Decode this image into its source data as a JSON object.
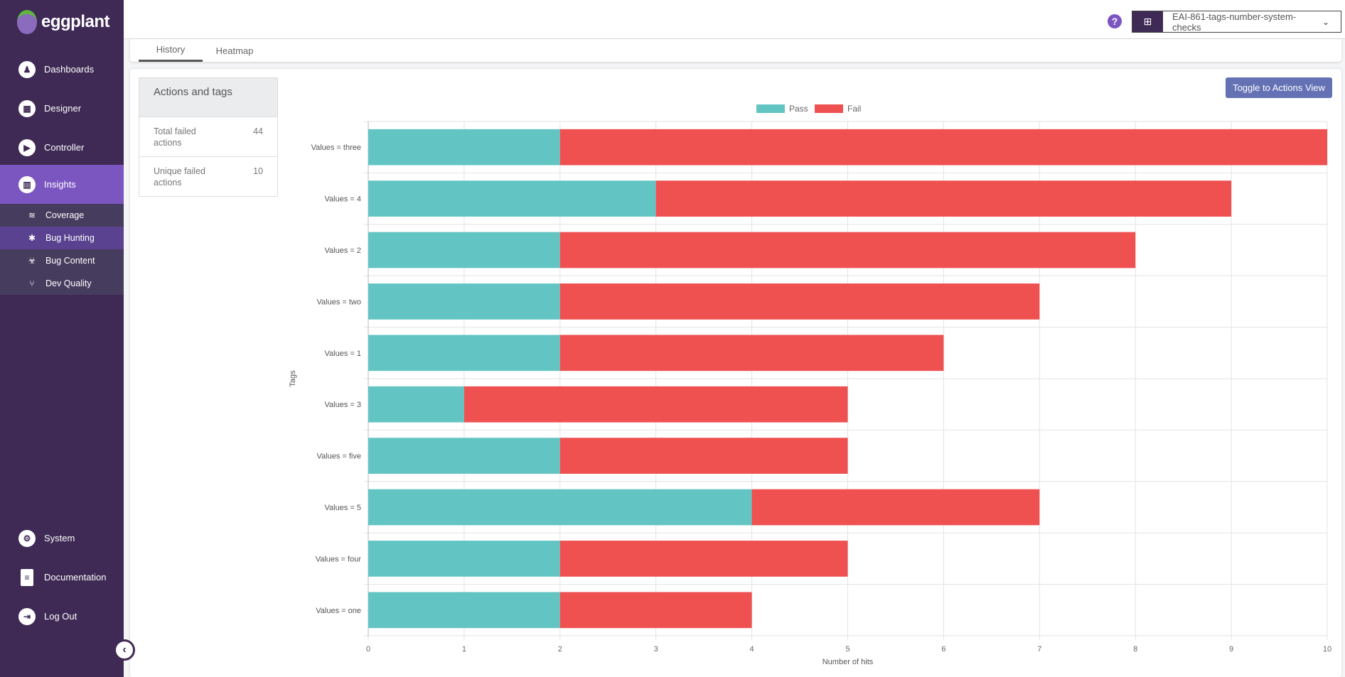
{
  "brand": {
    "name": "eggplant"
  },
  "sidebar": {
    "items": [
      {
        "label": "Dashboards",
        "icon": "dashboard-icon"
      },
      {
        "label": "Designer",
        "icon": "designer-icon"
      },
      {
        "label": "Controller",
        "icon": "play-icon"
      },
      {
        "label": "Insights",
        "icon": "insights-icon",
        "active": true
      }
    ],
    "submenu": [
      {
        "label": "Coverage",
        "icon": "layers-icon"
      },
      {
        "label": "Bug Hunting",
        "icon": "bug-icon",
        "active": true
      },
      {
        "label": "Bug Content",
        "icon": "biohazard-icon"
      },
      {
        "label": "Dev Quality",
        "icon": "branch-icon"
      }
    ],
    "bottom": [
      {
        "label": "System",
        "icon": "gear-icon"
      },
      {
        "label": "Documentation",
        "icon": "document-icon"
      },
      {
        "label": "Log Out",
        "icon": "logout-icon"
      }
    ]
  },
  "header": {
    "project": "EAI-861-tags-number-system-checks"
  },
  "tabs": [
    {
      "label": "History",
      "active": true
    },
    {
      "label": "Heatmap"
    }
  ],
  "stats": {
    "title": "Actions and tags",
    "rows": [
      {
        "label": "Total failed actions",
        "value": "44"
      },
      {
        "label": "Unique failed actions",
        "value": "10"
      }
    ]
  },
  "toggle_label": "Toggle to Actions View",
  "colors": {
    "pass": "#63c5c3",
    "fail": "#ef5050",
    "accent": "#7b55c0",
    "sidebar": "#3f2a55"
  },
  "chart_data": {
    "type": "bar",
    "orientation": "horizontal",
    "stacked": true,
    "categories": [
      "Values = three",
      "Values = 4",
      "Values = 2",
      "Values = two",
      "Values = 1",
      "Values = 3",
      "Values = five",
      "Values = 5",
      "Values = four",
      "Values = one"
    ],
    "series": [
      {
        "name": "Pass",
        "color": "#63c5c3",
        "values": [
          2,
          3,
          2,
          2,
          2,
          1,
          2,
          4,
          2,
          2
        ]
      },
      {
        "name": "Fail",
        "color": "#ef5050",
        "values": [
          8,
          6,
          6,
          5,
          4,
          4,
          3,
          3,
          3,
          2
        ]
      }
    ],
    "xlabel": "Number of hits",
    "ylabel": "Tags",
    "xlim": [
      0,
      10
    ],
    "xticks": [
      "0",
      "1",
      "2",
      "3",
      "4",
      "5",
      "6",
      "7",
      "8",
      "9",
      "10"
    ],
    "grid": true,
    "legend": "top"
  }
}
